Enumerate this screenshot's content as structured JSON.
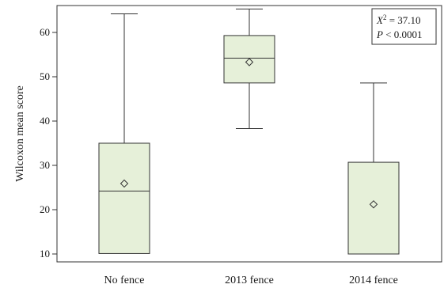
{
  "chart_data": {
    "type": "box",
    "ylabel": "Wilcoxon mean score",
    "ylim": [
      8,
      67
    ],
    "y_ticks": [
      10,
      20,
      30,
      40,
      50,
      60
    ],
    "categories": [
      "No fence",
      "2013 fence",
      "2014 fence"
    ],
    "boxes": [
      {
        "category": "No fence",
        "min": 10.1,
        "q1": 10.1,
        "median": 24.2,
        "q3": 35.0,
        "max": 64.2,
        "mean": 25.9
      },
      {
        "category": "2013 fence",
        "min": 38.3,
        "q1": 48.6,
        "median": 54.2,
        "q3": 59.3,
        "max": 65.3,
        "mean": 53.3
      },
      {
        "category": "2014 fence",
        "min": 10.0,
        "q1": 10.0,
        "median": 10.0,
        "q3": 30.7,
        "max": 48.6,
        "mean": 21.2
      }
    ],
    "annotation": {
      "chi_label": "X",
      "chi_sup": "2",
      "chi_value": " = 37.10",
      "p_label": "P",
      "p_value": " < 0.0001"
    },
    "colors": {
      "box_fill": "#e6f0d9",
      "stroke": "#333333"
    }
  }
}
